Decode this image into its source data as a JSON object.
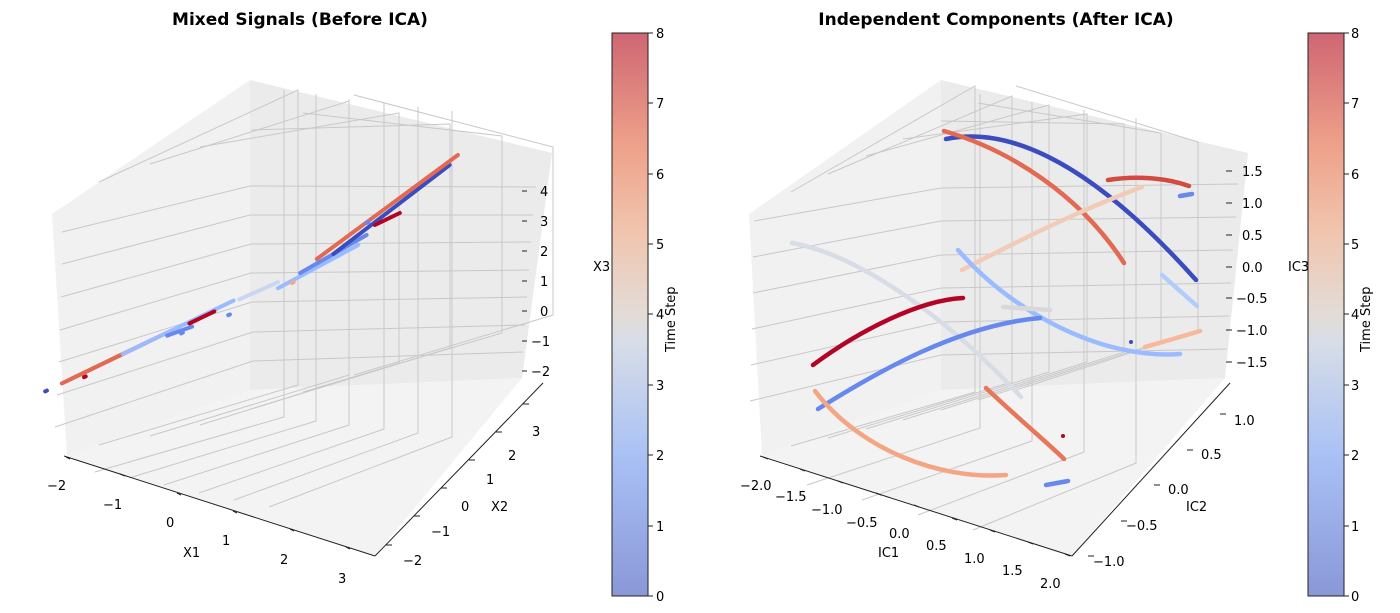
{
  "chart_data": [
    {
      "type": "scatter3d",
      "title": "Mixed Signals (Before ICA)",
      "xlabel": "X1",
      "ylabel": "X2",
      "zlabel": "X3",
      "xlim": [
        -2,
        3.4
      ],
      "ylim": [
        -2.5,
        3.5
      ],
      "zlim": [
        -2.5,
        4.7
      ],
      "xticks": [
        "−2",
        "−1",
        "0",
        "1",
        "2",
        "3"
      ],
      "yticks": [
        "−2",
        "−1",
        "0",
        "1",
        "2",
        "3"
      ],
      "zticks": [
        "−2",
        "−1",
        "0",
        "1",
        "2",
        "3",
        "4"
      ],
      "colorbar": {
        "label": "Time Step",
        "min": 0,
        "max": 8,
        "ticks": [
          "0",
          "1",
          "2",
          "3",
          "4",
          "5",
          "6",
          "7",
          "8"
        ]
      },
      "cmap": [
        "#3b4cc0",
        "#6788ee",
        "#9abbff",
        "#c9d7f0",
        "#edd1c2",
        "#f7a889",
        "#e26952",
        "#b40426"
      ],
      "segments": [
        {
          "t": 0.3,
          "from": [
            -1.9,
            -1.2,
            -2.3
          ],
          "to": [
            -1.88,
            -1.18,
            -2.28
          ]
        },
        {
          "t": 6.6,
          "from": [
            -1.7,
            -1.0,
            -2.1
          ],
          "to": [
            -0.3,
            0.2,
            -0.6
          ]
        },
        {
          "t": 6.9,
          "from": [
            -1.6,
            -0.9,
            -2.0
          ],
          "to": [
            -0.5,
            0.0,
            -0.8
          ]
        },
        {
          "t": 7.6,
          "from": [
            -1.4,
            -0.8,
            -1.9
          ],
          "to": [
            -1.38,
            -0.78,
            -1.88
          ]
        },
        {
          "t": 2.6,
          "from": [
            -0.9,
            -0.4,
            -1.2
          ],
          "to": [
            0.5,
            0.8,
            0.3
          ]
        },
        {
          "t": 1.6,
          "from": [
            -0.3,
            0.0,
            -0.6
          ],
          "to": [
            0.0,
            0.3,
            -0.4
          ]
        },
        {
          "t": 0.8,
          "from": [
            -0.1,
            0.1,
            -0.5
          ],
          "to": [
            -0.08,
            0.12,
            -0.48
          ]
        },
        {
          "t": 7.9,
          "from": [
            0.0,
            0.2,
            -0.2
          ],
          "to": [
            0.3,
            0.5,
            0.1
          ]
        },
        {
          "t": 1.0,
          "from": [
            0.5,
            0.6,
            0.0
          ],
          "to": [
            0.52,
            0.62,
            0.02
          ]
        },
        {
          "t": 3.6,
          "from": [
            0.6,
            0.8,
            0.4
          ],
          "to": [
            1.1,
            1.2,
            0.9
          ]
        },
        {
          "t": 2.0,
          "from": [
            1.1,
            1.2,
            0.7
          ],
          "to": [
            2.1,
            2.1,
            1.9
          ]
        },
        {
          "t": 6.2,
          "from": [
            1.3,
            1.3,
            0.9
          ],
          "to": [
            1.32,
            1.32,
            0.92
          ]
        },
        {
          "t": 1.7,
          "from": [
            1.4,
            1.4,
            1.2
          ],
          "to": [
            2.2,
            2.2,
            2.2
          ]
        },
        {
          "t": 0.3,
          "from": [
            1.8,
            1.8,
            1.7
          ],
          "to": [
            3.2,
            3.2,
            4.2
          ]
        },
        {
          "t": 7.2,
          "from": [
            1.6,
            1.6,
            1.6
          ],
          "to": [
            3.3,
            3.3,
            4.5
          ]
        },
        {
          "t": 7.8,
          "from": [
            2.3,
            2.3,
            2.5
          ],
          "to": [
            2.6,
            2.6,
            2.8
          ]
        },
        {
          "t": 0.6,
          "from": [
            2.2,
            2.2,
            2.6
          ],
          "to": [
            2.22,
            2.22,
            2.62
          ]
        }
      ]
    },
    {
      "type": "scatter3d",
      "title": "Independent Components (After ICA)",
      "xlabel": "IC1",
      "ylabel": "IC2",
      "zlabel": "IC3",
      "xlim": [
        -2.1,
        2.1
      ],
      "ylim": [
        -1.2,
        1.2
      ],
      "zlim": [
        -1.8,
        1.7
      ],
      "xticks": [
        "−2.0",
        "−1.5",
        "−1.0",
        "−0.5",
        "0.0",
        "0.5",
        "1.0",
        "1.5",
        "2.0"
      ],
      "yticks": [
        "−1.0",
        "−0.5",
        "0.0",
        "0.5",
        "1.0"
      ],
      "zticks": [
        "−1.5",
        "−1.0",
        "−0.5",
        "0.0",
        "0.5",
        "1.0",
        "1.5"
      ],
      "colorbar": {
        "label": "Time Step",
        "min": 0,
        "max": 8,
        "ticks": [
          "0",
          "1",
          "2",
          "3",
          "4",
          "5",
          "6",
          "7",
          "8"
        ]
      },
      "cmap": [
        "#3b4cc0",
        "#6788ee",
        "#9abbff",
        "#c9d7f0",
        "#edd1c2",
        "#f7a889",
        "#e26952",
        "#b40426"
      ]
    }
  ]
}
